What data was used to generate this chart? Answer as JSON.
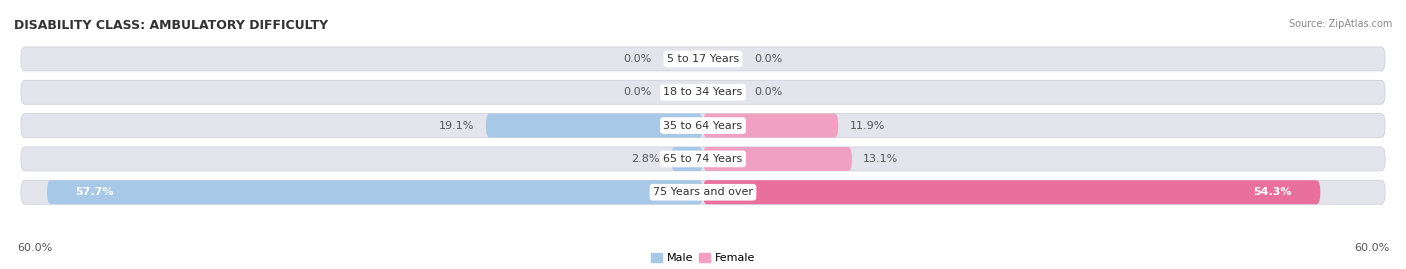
{
  "title": "DISABILITY CLASS: AMBULATORY DIFFICULTY",
  "source": "Source: ZipAtlas.com",
  "categories": [
    "5 to 17 Years",
    "18 to 34 Years",
    "35 to 64 Years",
    "65 to 74 Years",
    "75 Years and over"
  ],
  "male_values": [
    0.0,
    0.0,
    19.1,
    2.8,
    57.7
  ],
  "female_values": [
    0.0,
    0.0,
    11.9,
    13.1,
    54.3
  ],
  "max_value": 60.0,
  "male_color": "#a8c8e8",
  "female_color": "#f0a0c0",
  "female_color_large": "#e8709a",
  "bar_bg_color": "#e4e4ec",
  "bar_bg_border": "#d0d0dc",
  "figsize": [
    14.06,
    2.69
  ],
  "dpi": 100,
  "title_fontsize": 9,
  "label_fontsize": 8,
  "axis_label_fontsize": 8,
  "category_fontsize": 8
}
